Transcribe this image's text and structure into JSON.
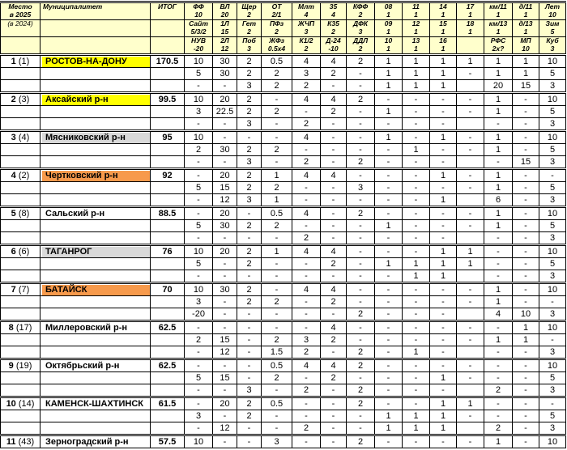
{
  "header": {
    "place_title": [
      "Место",
      "в 2025"
    ],
    "place_prev": "(в 2024)",
    "municipality": "Муниципалитет",
    "total": "ИТОГ",
    "rows": [
      [
        [
          "ФФ",
          "10"
        ],
        [
          "ВЛ",
          "20"
        ],
        [
          "Щер",
          "2"
        ],
        [
          "ОТ",
          "2/1"
        ],
        [
          "Млт",
          "4"
        ],
        [
          "35",
          "4"
        ],
        [
          "КФФ",
          "2"
        ],
        [
          "08",
          "1"
        ],
        [
          "11",
          "1"
        ],
        [
          "14",
          "1"
        ],
        [
          "17",
          "1"
        ],
        [
          "км/11",
          "1"
        ],
        [
          "д/11",
          "1"
        ],
        [
          "Лет",
          "10"
        ]
      ],
      [
        [
          "Сайт",
          "5/3/2"
        ],
        [
          "1Л",
          "15"
        ],
        [
          "Гет",
          "2"
        ],
        [
          "ПФз",
          "2"
        ],
        [
          "ЖЧП",
          "3"
        ],
        [
          "К35",
          "2"
        ],
        [
          "ДФК",
          "3"
        ],
        [
          "09",
          "1"
        ],
        [
          "12",
          "1"
        ],
        [
          "15",
          "1"
        ],
        [
          "18",
          "1"
        ],
        [
          "км/13",
          "1"
        ],
        [
          "д/13",
          "1"
        ],
        [
          "Зим",
          "5"
        ]
      ],
      [
        [
          "НУВ",
          "-20"
        ],
        [
          "2Л",
          "12"
        ],
        [
          "Поб",
          "3"
        ],
        [
          "ЖФз",
          "0.5x4"
        ],
        [
          "К1/2",
          "2"
        ],
        [
          "Д-24",
          "-10"
        ],
        [
          "ДДЛ",
          "2"
        ],
        [
          "10",
          "1"
        ],
        [
          "13",
          "1"
        ],
        [
          "16",
          "1"
        ],
        [
          "",
          ""
        ],
        [
          "РФС",
          "2х?"
        ],
        [
          "МП",
          "10"
        ],
        [
          "Куб",
          "3"
        ]
      ]
    ]
  },
  "colors": {
    "header_bg": "#ffffcc",
    "yellow": "#ffff00",
    "gray": "#d9d9d9",
    "orange": "#f79a4c"
  },
  "blocks": [
    {
      "place": "1",
      "prev": "(1)",
      "name": "РОСТОВ-НА-ДОНУ",
      "total": "170.5",
      "highlight": "yellow",
      "lines": [
        [
          "10",
          "30",
          "2",
          "0.5",
          "4",
          "4",
          "2",
          "1",
          "1",
          "1",
          "1",
          "1",
          "1",
          "10"
        ],
        [
          "5",
          "30",
          "2",
          "2",
          "3",
          "2",
          "-",
          "1",
          "1",
          "1",
          "-",
          "1",
          "1",
          "5"
        ],
        [
          "-",
          "-",
          "3",
          "2",
          "2",
          "-",
          "-",
          "1",
          "1",
          "1",
          "",
          "20",
          "15",
          "3"
        ]
      ]
    },
    {
      "place": "2",
      "prev": "(3)",
      "name": "Аксайский р-н",
      "total": "99.5",
      "highlight": "yellow",
      "lines": [
        [
          "10",
          "20",
          "2",
          "-",
          "4",
          "4",
          "2",
          "-",
          "-",
          "-",
          "-",
          "1",
          "-",
          "10"
        ],
        [
          "3",
          "22.5",
          "2",
          "2",
          "-",
          "2",
          "-",
          "1",
          "-",
          "-",
          "-",
          "1",
          "-",
          "5"
        ],
        [
          "-",
          "-",
          "3",
          "-",
          "2",
          "-",
          "-",
          "-",
          "-",
          "-",
          "",
          "-",
          "-",
          "3"
        ]
      ]
    },
    {
      "place": "3",
      "prev": "(4)",
      "name": "Мясниковский р-н",
      "total": "95",
      "highlight": "gray",
      "lines": [
        [
          "10",
          "-",
          "-",
          "-",
          "4",
          "-",
          "-",
          "1",
          "-",
          "1",
          "-",
          "1",
          "-",
          "10"
        ],
        [
          "2",
          "30",
          "2",
          "2",
          "-",
          "-",
          "-",
          "-",
          "1",
          "-",
          "-",
          "1",
          "-",
          "5"
        ],
        [
          "-",
          "-",
          "3",
          "-",
          "2",
          "-",
          "2",
          "-",
          "-",
          "-",
          "",
          "-",
          "15",
          "3"
        ]
      ]
    },
    {
      "place": "4",
      "prev": "(2)",
      "name": "Чертковский р-н",
      "total": "92",
      "highlight": "orange",
      "lines": [
        [
          "-",
          "20",
          "2",
          "1",
          "4",
          "4",
          "-",
          "-",
          "-",
          "1",
          "-",
          "1",
          "-",
          "-"
        ],
        [
          "5",
          "15",
          "2",
          "2",
          "-",
          "-",
          "3",
          "-",
          "-",
          "-",
          "-",
          "1",
          "-",
          "5"
        ],
        [
          "-",
          "12",
          "3",
          "1",
          "-",
          "-",
          "-",
          "-",
          "-",
          "1",
          "",
          "6",
          "-",
          "3"
        ]
      ]
    },
    {
      "place": "5",
      "prev": "(8)",
      "name": "Сальский р-н",
      "total": "88.5",
      "highlight": "",
      "lines": [
        [
          "-",
          "20",
          "-",
          "0.5",
          "4",
          "-",
          "2",
          "-",
          "-",
          "-",
          "-",
          "1",
          "-",
          "10"
        ],
        [
          "5",
          "30",
          "2",
          "2",
          "-",
          "-",
          "-",
          "1",
          "-",
          "-",
          "-",
          "1",
          "-",
          "5"
        ],
        [
          "-",
          "-",
          "-",
          "-",
          "2",
          "-",
          "-",
          "-",
          "-",
          "-",
          "",
          "-",
          "-",
          "3"
        ]
      ]
    },
    {
      "place": "6",
      "prev": "(6)",
      "name": "ТАГАНРОГ",
      "total": "76",
      "highlight": "gray",
      "lines": [
        [
          "10",
          "20",
          "2",
          "1",
          "4",
          "4",
          "-",
          "-",
          "-",
          "1",
          "1",
          "-",
          "-",
          "10"
        ],
        [
          "5",
          "-",
          "2",
          "-",
          "-",
          "2",
          "-",
          "1",
          "1",
          "1",
          "1",
          "-",
          "-",
          "5"
        ],
        [
          "-",
          "-",
          "-",
          "-",
          "-",
          "-",
          "-",
          "-",
          "1",
          "1",
          "",
          "-",
          "-",
          "3"
        ]
      ]
    },
    {
      "place": "7",
      "prev": "(7)",
      "name": "БАТАЙСК",
      "total": "70",
      "highlight": "orange",
      "lines": [
        [
          "10",
          "30",
          "2",
          "-",
          "4",
          "4",
          "-",
          "-",
          "-",
          "-",
          "-",
          "1",
          "-",
          "10"
        ],
        [
          "3",
          "-",
          "2",
          "2",
          "-",
          "2",
          "-",
          "-",
          "-",
          "-",
          "-",
          "1",
          "-",
          "-"
        ],
        [
          "-20",
          "-",
          "-",
          "-",
          "-",
          "-",
          "2",
          "-",
          "-",
          "-",
          "",
          "4",
          "10",
          "3"
        ]
      ]
    },
    {
      "place": "8",
      "prev": "(17)",
      "name": "Миллеровский р-н",
      "total": "62.5",
      "highlight": "",
      "lines": [
        [
          "-",
          "-",
          "-",
          "-",
          "-",
          "4",
          "-",
          "-",
          "-",
          "-",
          "-",
          "-",
          "1",
          "10"
        ],
        [
          "2",
          "15",
          "-",
          "2",
          "3",
          "2",
          "-",
          "-",
          "-",
          "-",
          "-",
          "1",
          "1",
          "-"
        ],
        [
          "-",
          "12",
          "-",
          "1.5",
          "2",
          "-",
          "2",
          "-",
          "1",
          "-",
          "",
          "-",
          "-",
          "3"
        ]
      ]
    },
    {
      "place": "9",
      "prev": "(19)",
      "name": "Октябрьский р-н",
      "total": "62.5",
      "highlight": "",
      "lines": [
        [
          "-",
          "-",
          "-",
          "0.5",
          "4",
          "4",
          "2",
          "-",
          "-",
          "-",
          "-",
          "-",
          "-",
          "10"
        ],
        [
          "5",
          "15",
          "-",
          "2",
          "-",
          "2",
          "-",
          "-",
          "-",
          "1",
          "-",
          "-",
          "-",
          "5"
        ],
        [
          "-",
          "-",
          "3",
          "-",
          "2",
          "-",
          "2",
          "-",
          "-",
          "-",
          "",
          "2",
          "-",
          "3"
        ]
      ]
    },
    {
      "place": "10",
      "prev": "(14)",
      "name": "КАМЕНСК-ШАХТИНСК",
      "total": "61.5",
      "highlight": "",
      "lines": [
        [
          "-",
          "20",
          "2",
          "0.5",
          "-",
          "-",
          "2",
          "-",
          "-",
          "1",
          "1",
          "-",
          "-",
          "-"
        ],
        [
          "3",
          "-",
          "2",
          "-",
          "-",
          "-",
          "-",
          "1",
          "1",
          "1",
          "-",
          "-",
          "-",
          "5"
        ],
        [
          "-",
          "12",
          "-",
          "-",
          "2",
          "-",
          "-",
          "1",
          "1",
          "1",
          "",
          "2",
          "-",
          "3"
        ]
      ]
    },
    {
      "place": "11",
      "prev": "(43)",
      "name": "Зерноградский р-н",
      "total": "57.5",
      "highlight": "",
      "lines": [
        [
          "10",
          "-",
          "-",
          "3",
          "-",
          "-",
          "2",
          "-",
          "-",
          "-",
          "-",
          "1",
          "-",
          "10"
        ]
      ]
    }
  ]
}
